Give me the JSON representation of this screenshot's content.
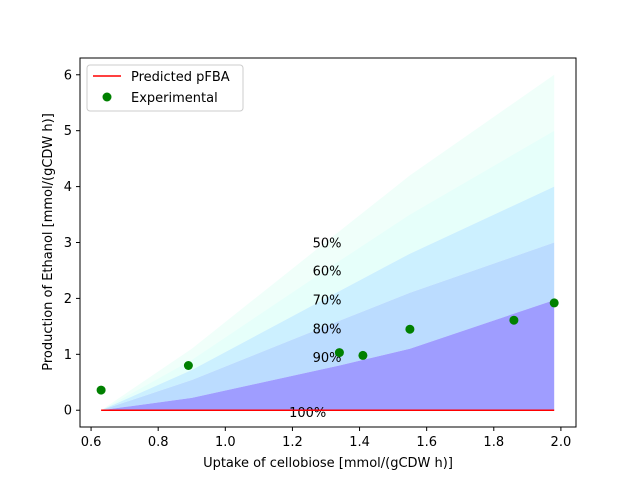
{
  "chart_data": {
    "type": "line",
    "xlabel": "Uptake of cellobiose [mmol/(gCDW h)]",
    "ylabel": "Production of Ethanol [mmol/(gCDW h)]",
    "xlim": [
      0.567,
      2.045
    ],
    "ylim": [
      -0.3,
      6.3
    ],
    "xticks": [
      0.6,
      0.8,
      1.0,
      1.2,
      1.4,
      1.6,
      1.8,
      2.0
    ],
    "yticks": [
      0,
      1,
      2,
      3,
      4,
      5,
      6
    ],
    "grid": false,
    "legend_position": "top-left",
    "bands_x": [
      0.63,
      0.9,
      1.34,
      1.55,
      1.98
    ],
    "bands": [
      {
        "label": "50%",
        "color": "#f0fffa",
        "upper": [
          0,
          1.1,
          3.2,
          4.2,
          6.0
        ],
        "lower": [
          0,
          0.9,
          2.67,
          3.5,
          5.0
        ]
      },
      {
        "label": "60%",
        "color": "#e6fffa",
        "upper": [
          0,
          0.9,
          2.67,
          3.5,
          5.0
        ],
        "lower": [
          0,
          0.72,
          2.13,
          2.8,
          4.0
        ]
      },
      {
        "label": "70%",
        "color": "#ccf0ff",
        "upper": [
          0,
          0.72,
          2.13,
          2.8,
          4.0
        ],
        "lower": [
          0,
          0.54,
          1.6,
          2.1,
          3.0
        ]
      },
      {
        "label": "80%",
        "color": "#bbdcff",
        "upper": [
          0,
          0.54,
          1.6,
          2.1,
          3.0
        ],
        "lower": [
          0,
          0.22,
          0.8,
          1.1,
          1.97
        ]
      },
      {
        "label": "90%",
        "color": "#9f9dff",
        "upper": [
          0,
          0.22,
          0.8,
          1.1,
          1.97
        ],
        "lower": [
          0,
          0,
          0,
          0,
          0
        ]
      }
    ],
    "band_label_positions": [
      {
        "label": "50%",
        "x": 1.26,
        "y": 3.0
      },
      {
        "label": "60%",
        "x": 1.26,
        "y": 2.5
      },
      {
        "label": "70%",
        "x": 1.26,
        "y": 1.98
      },
      {
        "label": "80%",
        "x": 1.26,
        "y": 1.46
      },
      {
        "label": "90%",
        "x": 1.26,
        "y": 0.95
      },
      {
        "label": "100%",
        "x": 1.19,
        "y": -0.03
      }
    ],
    "series": [
      {
        "name": "Predicted pFBA",
        "kind": "line",
        "color": "#ff0000",
        "x": [
          0.63,
          1.98
        ],
        "y": [
          0,
          0
        ]
      },
      {
        "name": "Experimental",
        "kind": "scatter",
        "color": "#008000",
        "x": [
          0.63,
          0.89,
          1.34,
          1.41,
          1.55,
          1.86,
          1.98
        ],
        "y": [
          0.36,
          0.8,
          1.03,
          0.98,
          1.45,
          1.61,
          1.92
        ]
      }
    ]
  }
}
